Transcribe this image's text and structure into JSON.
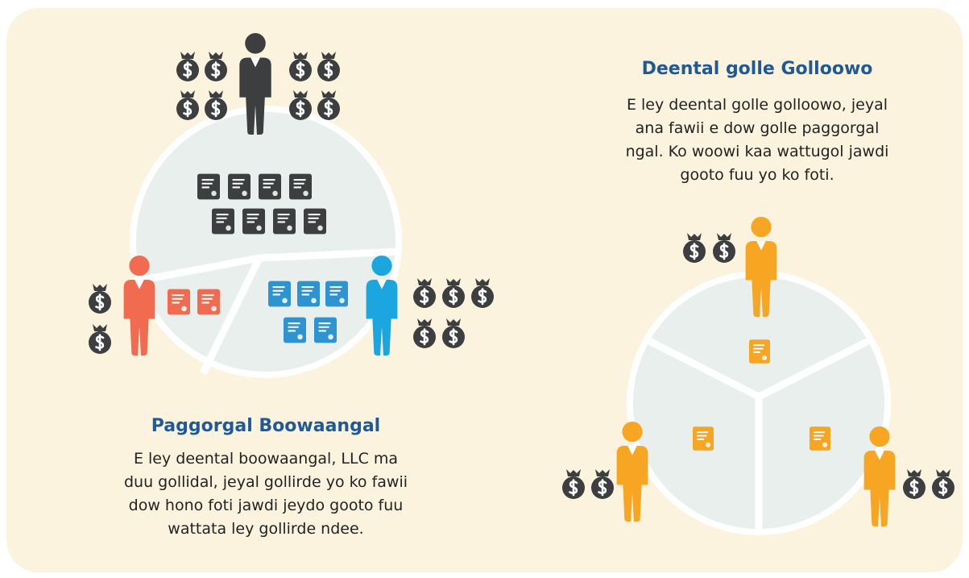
{
  "left": {
    "title": "Paggorgal Boowaangal",
    "lines": [
      "E ley deental boowaangal, LLC ma",
      "duu gollidal, jeyal gollirde yo ko fawii",
      "dow hono foti jawdi jeydo gooto fuu",
      "wattata ley gollirde ndee."
    ]
  },
  "right": {
    "title": "Deental golle Golloowo",
    "lines": [
      "E ley deental golle golloowo, jeyal",
      "ana fawii e dow golle paggorgal",
      "ngal. Ko woowi kaa wattugol jawdi",
      "gooto fuu yo ko foti."
    ]
  }
}
